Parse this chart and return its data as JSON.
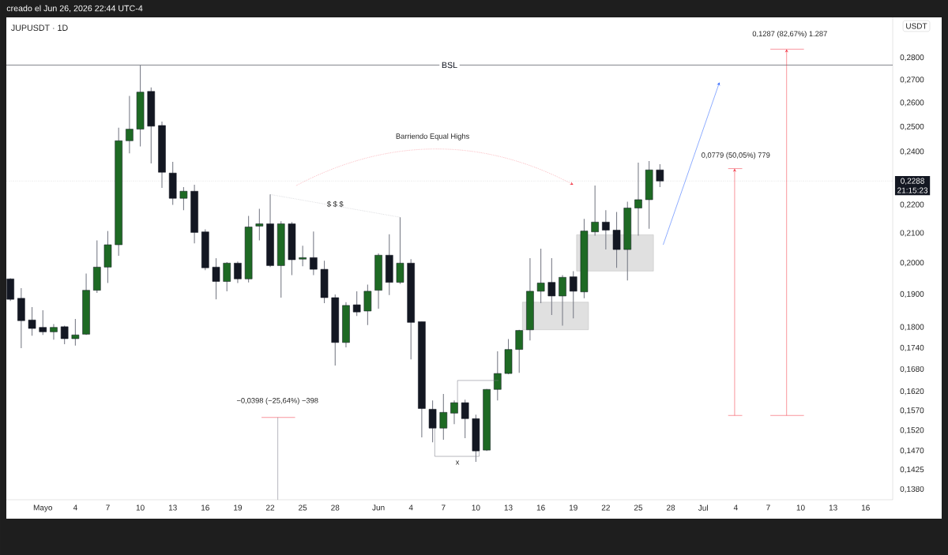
{
  "chart_data": {
    "type": "candlestick",
    "title": "JUPUSDT · 1D",
    "subtitle": "creado el Jun 26, 2026 22:44 UTC-4",
    "ylabel": "USDT",
    "log": true,
    "x": [
      "2026-04-28",
      "2026-04-29",
      "2026-04-30",
      "2026-05-01",
      "2026-05-02",
      "2026-05-03",
      "2026-05-04",
      "2026-05-05",
      "2026-05-06",
      "2026-05-07",
      "2026-05-08",
      "2026-05-09",
      "2026-05-10",
      "2026-05-11",
      "2026-05-12",
      "2026-05-13",
      "2026-05-14",
      "2026-05-15",
      "2026-05-16",
      "2026-05-17",
      "2026-05-18",
      "2026-05-19",
      "2026-05-20",
      "2026-05-21",
      "2026-05-22",
      "2026-05-23",
      "2026-05-24",
      "2026-05-25",
      "2026-05-26",
      "2026-05-27",
      "2026-05-28",
      "2026-05-29",
      "2026-05-30",
      "2026-05-31",
      "2026-06-01",
      "2026-06-02",
      "2026-06-03",
      "2026-06-04",
      "2026-06-05",
      "2026-06-06",
      "2026-06-07",
      "2026-06-08",
      "2026-06-09",
      "2026-06-10",
      "2026-06-11",
      "2026-06-12",
      "2026-06-13",
      "2026-06-14",
      "2026-06-15",
      "2026-06-16",
      "2026-06-17",
      "2026-06-18",
      "2026-06-19",
      "2026-06-20",
      "2026-06-21",
      "2026-06-22",
      "2026-06-23",
      "2026-06-24",
      "2026-06-25",
      "2026-06-26",
      "2026-06-27"
    ],
    "ohlc": [
      [
        0.1949,
        0.1951,
        0.188,
        0.1885
      ],
      [
        0.1888,
        0.192,
        0.174,
        0.182
      ],
      [
        0.1822,
        0.1861,
        0.1776,
        0.1797
      ],
      [
        0.18,
        0.1851,
        0.1778,
        0.1787
      ],
      [
        0.1787,
        0.181,
        0.1764,
        0.18
      ],
      [
        0.1802,
        0.1805,
        0.1751,
        0.1767
      ],
      [
        0.1767,
        0.1825,
        0.1747,
        0.1778
      ],
      [
        0.178,
        0.1966,
        0.1778,
        0.1913
      ],
      [
        0.1913,
        0.2076,
        0.1905,
        0.1987
      ],
      [
        0.1987,
        0.2108,
        0.1936,
        0.2061
      ],
      [
        0.2061,
        0.2497,
        0.2024,
        0.2444
      ],
      [
        0.2444,
        0.263,
        0.2394,
        0.2491
      ],
      [
        0.2491,
        0.2767,
        0.2421,
        0.2647
      ],
      [
        0.265,
        0.2667,
        0.2355,
        0.2503
      ],
      [
        0.2506,
        0.2522,
        0.2262,
        0.2321
      ],
      [
        0.2318,
        0.2361,
        0.22,
        0.2224
      ],
      [
        0.2224,
        0.2265,
        0.2181,
        0.225
      ],
      [
        0.225,
        0.2274,
        0.2066,
        0.2103
      ],
      [
        0.2105,
        0.2114,
        0.1977,
        0.1985
      ],
      [
        0.1987,
        0.2016,
        0.1885,
        0.1941
      ],
      [
        0.1941,
        0.2003,
        0.191,
        0.2
      ],
      [
        0.2,
        0.2005,
        0.1936,
        0.1949
      ],
      [
        0.1949,
        0.2161,
        0.1938,
        0.2122
      ],
      [
        0.2125,
        0.2186,
        0.2076,
        0.2133
      ],
      [
        0.2133,
        0.2238,
        0.1987,
        0.1992
      ],
      [
        0.1992,
        0.2142,
        0.189,
        0.2133
      ],
      [
        0.2133,
        0.2139,
        0.1961,
        0.2011
      ],
      [
        0.2013,
        0.2058,
        0.199,
        0.2018
      ],
      [
        0.2018,
        0.2106,
        0.1961,
        0.198
      ],
      [
        0.198,
        0.2008,
        0.1873,
        0.189
      ],
      [
        0.189,
        0.19,
        0.1691,
        0.1756
      ],
      [
        0.1756,
        0.1876,
        0.1742,
        0.1866
      ],
      [
        0.1868,
        0.191,
        0.1834,
        0.1846
      ],
      [
        0.1849,
        0.1931,
        0.1807,
        0.191
      ],
      [
        0.1913,
        0.2032,
        0.1856,
        0.2026
      ],
      [
        0.2026,
        0.2097,
        0.1898,
        0.1938
      ],
      [
        0.1938,
        0.2156,
        0.1933,
        0.2
      ],
      [
        0.2,
        0.2013,
        0.1708,
        0.1815
      ],
      [
        0.1817,
        0.1817,
        0.1503,
        0.1576
      ],
      [
        0.1574,
        0.1597,
        0.1491,
        0.1526
      ],
      [
        0.1526,
        0.1614,
        0.1497,
        0.1566
      ],
      [
        0.1564,
        0.1597,
        0.1536,
        0.1591
      ],
      [
        0.1591,
        0.1599,
        0.1501,
        0.155
      ],
      [
        0.155,
        0.156,
        0.1444,
        0.147
      ],
      [
        0.1472,
        0.1627,
        0.147,
        0.1626
      ],
      [
        0.1626,
        0.1731,
        0.1597,
        0.1669
      ],
      [
        0.1669,
        0.1766,
        0.1667,
        0.1736
      ],
      [
        0.1736,
        0.1793,
        0.1671,
        0.1791
      ],
      [
        0.1793,
        0.2016,
        0.1762,
        0.191
      ],
      [
        0.191,
        0.2048,
        0.1873,
        0.1936
      ],
      [
        0.1938,
        0.2016,
        0.1837,
        0.1895
      ],
      [
        0.1895,
        0.1961,
        0.1805,
        0.1954
      ],
      [
        0.1956,
        0.1974,
        0.1827,
        0.191
      ],
      [
        0.1908,
        0.215,
        0.1888,
        0.2108
      ],
      [
        0.2105,
        0.2271,
        0.2092,
        0.2139
      ],
      [
        0.2139,
        0.2181,
        0.2045,
        0.2111
      ],
      [
        0.2111,
        0.2175,
        0.1985,
        0.2045
      ],
      [
        0.2045,
        0.2212,
        0.1944,
        0.2189
      ],
      [
        0.2189,
        0.2358,
        0.2092,
        0.2219
      ],
      [
        0.2219,
        0.2364,
        0.2116,
        0.233
      ],
      [
        0.233,
        0.2352,
        0.2265,
        0.2288
      ]
    ],
    "colors": [
      "#131722",
      "#131722",
      "#131722",
      "#131722",
      "#1e6a24",
      "#131722",
      "#1e6a24",
      "#1e6a24",
      "#1e6a24",
      "#1e6a24",
      "#1e6a24",
      "#1e6a24",
      "#1e6a24",
      "#131722",
      "#131722",
      "#131722",
      "#1e6a24",
      "#131722",
      "#131722",
      "#131722",
      "#1e6a24",
      "#131722",
      "#1e6a24",
      "#1e6a24",
      "#131722",
      "#1e6a24",
      "#131722",
      "#1e6a24",
      "#131722",
      "#131722",
      "#131722",
      "#1e6a24",
      "#131722",
      "#1e6a24",
      "#1e6a24",
      "#131722",
      "#1e6a24",
      "#131722",
      "#131722",
      "#131722",
      "#1e6a24",
      "#1e6a24",
      "#131722",
      "#131722",
      "#1e6a24",
      "#1e6a24",
      "#1e6a24",
      "#1e6a24",
      "#1e6a24",
      "#1e6a24",
      "#131722",
      "#1e6a24",
      "#131722",
      "#1e6a24",
      "#1e6a24",
      "#131722",
      "#131722",
      "#1e6a24",
      "#1e6a24",
      "#1e6a24",
      "#131722"
    ],
    "series": [
      {
        "type": "line",
        "x": [
          "2026-05-22",
          "2026-06-03"
        ],
        "values": [
          0.2238,
          0.2156
        ],
        "color": "#9598a1",
        "line_style": "dotted"
      }
    ],
    "xlim": [
      "2026-04-27T15:00",
      "2026-07-18T12:00"
    ],
    "ylim": [
      0.1357,
      0.2992
    ],
    "xticks": [
      {
        "value": "2026-05-01",
        "label": "Mayo"
      },
      {
        "value": "2026-05-04",
        "label": "4"
      },
      {
        "value": "2026-05-07",
        "label": "7"
      },
      {
        "value": "2026-05-10",
        "label": "10"
      },
      {
        "value": "2026-05-13",
        "label": "13"
      },
      {
        "value": "2026-05-16",
        "label": "16"
      },
      {
        "value": "2026-05-19",
        "label": "19"
      },
      {
        "value": "2026-05-22",
        "label": "22"
      },
      {
        "value": "2026-05-25",
        "label": "25"
      },
      {
        "value": "2026-05-28",
        "label": "28"
      },
      {
        "value": "2026-06-01",
        "label": "Jun"
      },
      {
        "value": "2026-06-04",
        "label": "4"
      },
      {
        "value": "2026-06-07",
        "label": "7"
      },
      {
        "value": "2026-06-10",
        "label": "10"
      },
      {
        "value": "2026-06-13",
        "label": "13"
      },
      {
        "value": "2026-06-16",
        "label": "16"
      },
      {
        "value": "2026-06-19",
        "label": "19"
      },
      {
        "value": "2026-06-22",
        "label": "22"
      },
      {
        "value": "2026-06-25",
        "label": "25"
      },
      {
        "value": "2026-06-28",
        "label": "28"
      },
      {
        "value": "2026-07-01",
        "label": "Jul"
      },
      {
        "value": "2026-07-04",
        "label": "4"
      },
      {
        "value": "2026-07-07",
        "label": "7"
      },
      {
        "value": "2026-07-10",
        "label": "10"
      },
      {
        "value": "2026-07-13",
        "label": "13"
      },
      {
        "value": "2026-07-16",
        "label": "16"
      }
    ],
    "yticks": [
      {
        "value": 0.138,
        "label": "0,1380"
      },
      {
        "value": 0.1425,
        "label": "0,1425"
      },
      {
        "value": 0.147,
        "label": "0,1470"
      },
      {
        "value": 0.152,
        "label": "0,1520"
      },
      {
        "value": 0.157,
        "label": "0,1570"
      },
      {
        "value": 0.162,
        "label": "0,1620"
      },
      {
        "value": 0.168,
        "label": "0,1680"
      },
      {
        "value": 0.174,
        "label": "0,1740"
      },
      {
        "value": 0.18,
        "label": "0,1800"
      },
      {
        "value": 0.19,
        "label": "0,1900"
      },
      {
        "value": 0.2,
        "label": "0,2000"
      },
      {
        "value": 0.21,
        "label": "0,2100"
      },
      {
        "value": 0.22,
        "label": "0,2200"
      },
      {
        "value": 0.24,
        "label": "0,2400"
      },
      {
        "value": 0.25,
        "label": "0,2500"
      },
      {
        "value": 0.26,
        "label": "0,2600"
      },
      {
        "value": 0.27,
        "label": "0,2700"
      },
      {
        "value": 0.28,
        "label": "0,2800"
      }
    ],
    "ref_lines": [
      {
        "axis": "y",
        "value": 0.2767,
        "label": "BSL",
        "color": "#131722",
        "line_style": "solid"
      },
      {
        "axis": "y",
        "value": 0.2288,
        "label": "0,2288",
        "color": "#131722",
        "line_style": "dotted"
      }
    ],
    "annotations": [
      "$ $ $",
      "Barriendo Equal Highs",
      "x",
      "−0,0398 (−25,64%) −398",
      "0,0779 (50,05%) 779",
      "0,1287 (82,67%) 1.287",
      "21:15:23"
    ]
  }
}
